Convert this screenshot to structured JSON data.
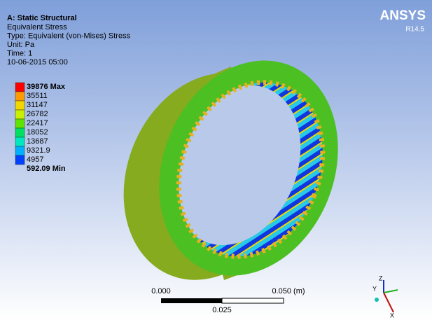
{
  "header": {
    "title": "A: Static Structural",
    "lines": [
      "Equivalent Stress",
      "Type: Equivalent (von-Mises) Stress",
      "Unit: Pa",
      "Time: 1",
      "10-06-2015 05:00"
    ]
  },
  "logo": {
    "name": "ANSYS",
    "version": "R14.5"
  },
  "legend": {
    "labels": [
      "39876 Max",
      "35511",
      "31147",
      "26782",
      "22417",
      "18052",
      "13687",
      "9321.9",
      "4957",
      "592.09 Min"
    ],
    "colors": [
      "#ff0000",
      "#ff9a00",
      "#f2d600",
      "#c8f000",
      "#5ee400",
      "#00e060",
      "#00e8c0",
      "#00b0ff",
      "#0040ff"
    ]
  },
  "scale_bar": {
    "left": "0.000",
    "right": "0.050 (m)",
    "middle": "0.025"
  },
  "triad": {
    "x": "X",
    "y": "Y",
    "z": "Z"
  }
}
